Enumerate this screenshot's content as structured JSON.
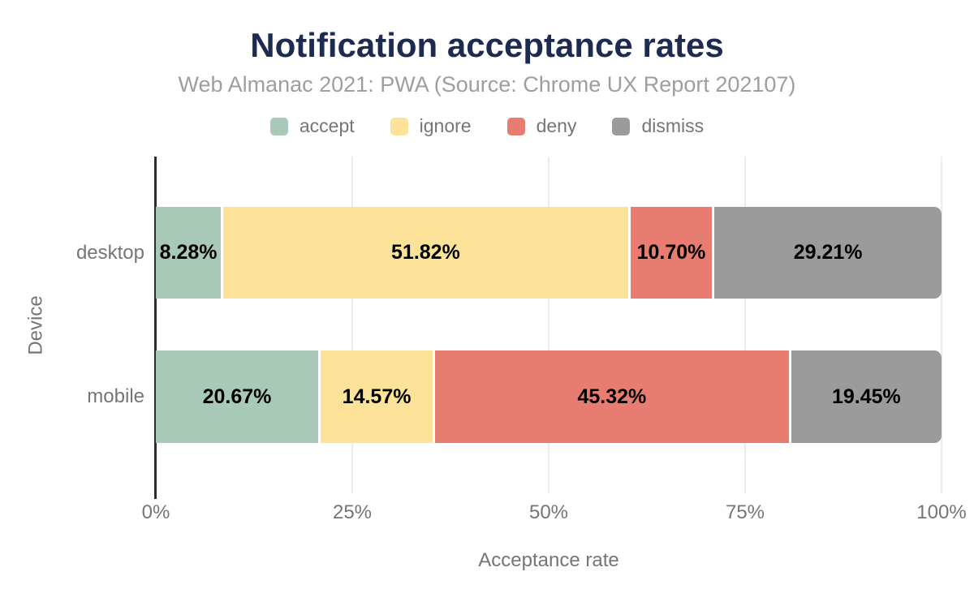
{
  "title": "Notification acceptance rates",
  "subtitle": "Web Almanac 2021: PWA (Source: Chrome UX Report 202107)",
  "colors": {
    "accept": "#a9c9b8",
    "ignore": "#fde39a",
    "deny": "#e87c70",
    "dismiss": "#9b9b9b",
    "title_text": "#1e2b50",
    "subtitle_text": "#9e9e9e",
    "axis_text": "#757575",
    "value_label_text": "#000000",
    "axis_line": "#2d2d2d",
    "gridline": "#ededed"
  },
  "chart_data": {
    "type": "bar",
    "orientation": "horizontal",
    "stacked": true,
    "title": "Notification acceptance rates",
    "subtitle": "Web Almanac 2021: PWA (Source: Chrome UX Report 202107)",
    "xlabel": "Acceptance rate",
    "ylabel": "Device",
    "categories": [
      "desktop",
      "mobile"
    ],
    "series": [
      {
        "name": "accept",
        "values": [
          8.28,
          20.67
        ]
      },
      {
        "name": "ignore",
        "values": [
          51.82,
          14.57
        ]
      },
      {
        "name": "deny",
        "values": [
          10.7,
          45.32
        ]
      },
      {
        "name": "dismiss",
        "values": [
          29.21,
          19.45
        ]
      }
    ],
    "value_labels": [
      [
        "8.28%",
        "51.82%",
        "10.70%",
        "29.21%"
      ],
      [
        "20.67%",
        "14.57%",
        "45.32%",
        "19.45%"
      ]
    ],
    "xlim": [
      0,
      100
    ],
    "x_ticks": [
      {
        "label": "0%",
        "value": 0
      },
      {
        "label": "25%",
        "value": 25
      },
      {
        "label": "50%",
        "value": 50
      },
      {
        "label": "75%",
        "value": 75
      },
      {
        "label": "100%",
        "value": 100
      }
    ],
    "legend": [
      "accept",
      "ignore",
      "deny",
      "dismiss"
    ],
    "legend_position": "top",
    "grid": true
  }
}
